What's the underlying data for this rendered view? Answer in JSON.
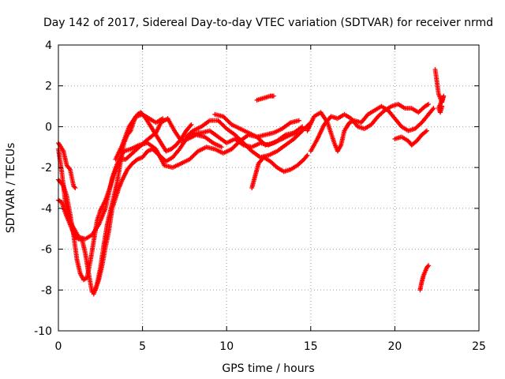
{
  "chart_data": {
    "type": "scatter",
    "title": "Day 142 of 2017, Sidereal Day-to-day VTEC variation (SDTVAR) for receiver nrmd",
    "xlabel": "GPS time / hours",
    "ylabel": "SDTVAR / TECUs",
    "xlim": [
      0,
      25
    ],
    "ylim": [
      -10,
      4
    ],
    "xticks": [
      0,
      5,
      10,
      15,
      20,
      25
    ],
    "yticks": [
      -10,
      -8,
      -6,
      -4,
      -2,
      0,
      2,
      4
    ],
    "grid": true,
    "legend": "none",
    "marker": "+",
    "series": [
      {
        "color": "#ff0000",
        "tracks": [
          [
            [
              0.0,
              -0.8
            ],
            [
              0.3,
              -1.2
            ],
            [
              0.5,
              -1.9
            ],
            [
              0.7,
              -2.1
            ],
            [
              0.9,
              -2.9
            ],
            [
              1.0,
              -3.0
            ]
          ],
          [
            [
              0.0,
              -1.1
            ],
            [
              0.2,
              -2.2
            ],
            [
              0.4,
              -3.6
            ],
            [
              0.6,
              -4.4
            ],
            [
              0.8,
              -4.8
            ],
            [
              1.2,
              -5.4
            ],
            [
              1.6,
              -5.5
            ],
            [
              2.0,
              -5.3
            ],
            [
              2.4,
              -4.8
            ],
            [
              2.8,
              -4.0
            ],
            [
              3.2,
              -2.5
            ],
            [
              3.5,
              -1.8
            ],
            [
              3.9,
              -1.2
            ],
            [
              4.3,
              -1.1
            ],
            [
              4.8,
              -0.9
            ],
            [
              5.3,
              -0.8
            ],
            [
              5.8,
              -1.1
            ],
            [
              6.3,
              -1.9
            ],
            [
              6.8,
              -2.0
            ],
            [
              7.3,
              -1.8
            ],
            [
              7.8,
              -1.6
            ],
            [
              8.3,
              -1.2
            ],
            [
              8.8,
              -1.0
            ],
            [
              9.3,
              -1.1
            ],
            [
              9.8,
              -1.3
            ],
            [
              10.3,
              -1.1
            ],
            [
              10.8,
              -0.7
            ],
            [
              11.3,
              -0.4
            ],
            [
              11.8,
              -0.5
            ],
            [
              12.3,
              -0.9
            ],
            [
              12.8,
              -0.8
            ],
            [
              13.3,
              -0.6
            ],
            [
              13.8,
              -0.4
            ],
            [
              14.3,
              -0.3
            ]
          ],
          [
            [
              0.0,
              -2.6
            ],
            [
              0.3,
              -2.9
            ],
            [
              0.5,
              -3.4
            ],
            [
              0.7,
              -4.3
            ],
            [
              0.9,
              -5.3
            ],
            [
              1.1,
              -6.5
            ],
            [
              1.3,
              -7.2
            ],
            [
              1.5,
              -7.5
            ],
            [
              1.7,
              -7.4
            ],
            [
              1.9,
              -6.6
            ],
            [
              2.1,
              -5.6
            ],
            [
              2.3,
              -4.6
            ],
            [
              2.5,
              -4.1
            ],
            [
              2.8,
              -3.6
            ],
            [
              3.1,
              -2.9
            ],
            [
              3.4,
              -2.1
            ],
            [
              3.7,
              -1.6
            ],
            [
              4.0,
              -1.6
            ],
            [
              4.4,
              -1.3
            ],
            [
              4.8,
              -1.0
            ],
            [
              5.2,
              -0.7
            ],
            [
              5.5,
              -0.5
            ],
            [
              5.8,
              -0.3
            ],
            [
              6.1,
              0.2
            ],
            [
              6.5,
              0.4
            ],
            [
              6.9,
              -0.2
            ],
            [
              7.3,
              -0.7
            ],
            [
              7.7,
              -0.6
            ],
            [
              8.2,
              -0.4
            ],
            [
              8.7,
              -0.5
            ],
            [
              9.2,
              -0.8
            ],
            [
              9.7,
              -1.0
            ]
          ],
          [
            [
              0.0,
              -3.6
            ],
            [
              0.2,
              -3.7
            ],
            [
              0.4,
              -4.2
            ],
            [
              0.6,
              -4.6
            ],
            [
              0.8,
              -5.0
            ],
            [
              1.0,
              -5.4
            ],
            [
              1.2,
              -5.5
            ],
            [
              1.4,
              -5.5
            ],
            [
              1.6,
              -6.2
            ],
            [
              1.8,
              -7.2
            ],
            [
              2.0,
              -8.1
            ],
            [
              2.2,
              -8.0
            ],
            [
              2.4,
              -7.5
            ],
            [
              2.6,
              -6.8
            ],
            [
              2.8,
              -5.9
            ],
            [
              3.0,
              -5.1
            ],
            [
              3.2,
              -4.0
            ],
            [
              3.4,
              -3.5
            ],
            [
              3.6,
              -3.0
            ],
            [
              3.8,
              -2.6
            ],
            [
              4.1,
              -2.1
            ],
            [
              4.4,
              -1.8
            ],
            [
              4.7,
              -1.6
            ],
            [
              5.0,
              -1.5
            ],
            [
              5.3,
              -1.2
            ],
            [
              5.6,
              -1.1
            ],
            [
              6.0,
              -1.4
            ],
            [
              6.4,
              -1.7
            ],
            [
              6.8,
              -1.5
            ],
            [
              7.2,
              -1.1
            ],
            [
              7.6,
              -0.6
            ],
            [
              8.0,
              -0.3
            ],
            [
              8.5,
              -0.3
            ],
            [
              9.0,
              -0.2
            ],
            [
              9.5,
              -0.5
            ],
            [
              10.0,
              -0.8
            ],
            [
              10.5,
              -0.6
            ],
            [
              11.0,
              -0.9
            ],
            [
              11.5,
              -1.0
            ],
            [
              12.0,
              -0.8
            ],
            [
              12.5,
              -0.9
            ],
            [
              13.0,
              -0.7
            ],
            [
              13.5,
              -0.4
            ],
            [
              14.0,
              -0.3
            ],
            [
              14.5,
              0.0
            ]
          ],
          [
            [
              2.1,
              -8.2
            ],
            [
              2.3,
              -7.7
            ],
            [
              2.5,
              -6.9
            ],
            [
              2.7,
              -5.8
            ],
            [
              2.9,
              -4.8
            ],
            [
              3.1,
              -4.1
            ],
            [
              3.3,
              -3.4
            ],
            [
              3.5,
              -2.7
            ],
            [
              3.7,
              -1.7
            ],
            [
              3.9,
              -0.8
            ],
            [
              4.1,
              -0.4
            ],
            [
              4.3,
              -0.2
            ],
            [
              4.5,
              0.3
            ],
            [
              4.7,
              0.6
            ],
            [
              4.9,
              0.7
            ],
            [
              5.2,
              0.4
            ],
            [
              5.5,
              0.0
            ],
            [
              5.8,
              -0.4
            ],
            [
              6.1,
              -0.8
            ],
            [
              6.4,
              -1.2
            ],
            [
              6.7,
              -1.1
            ],
            [
              7.0,
              -0.9
            ],
            [
              7.3,
              -0.6
            ],
            [
              7.6,
              -0.2
            ],
            [
              7.9,
              0.1
            ]
          ],
          [
            [
              3.4,
              -1.6
            ],
            [
              3.8,
              -0.9
            ],
            [
              4.2,
              0.0
            ],
            [
              4.6,
              0.5
            ],
            [
              5.0,
              0.6
            ],
            [
              5.4,
              0.4
            ],
            [
              5.8,
              0.2
            ],
            [
              6.2,
              0.4
            ]
          ],
          [
            [
              7.6,
              -0.5
            ],
            [
              8.0,
              -0.2
            ],
            [
              8.5,
              0.0
            ],
            [
              9.0,
              0.3
            ],
            [
              9.5,
              0.3
            ],
            [
              10.0,
              -0.1
            ],
            [
              10.5,
              -0.4
            ],
            [
              11.0,
              -0.8
            ],
            [
              11.5,
              -1.2
            ],
            [
              12.0,
              -1.5
            ],
            [
              12.5,
              -1.4
            ],
            [
              13.0,
              -1.2
            ],
            [
              13.5,
              -0.9
            ],
            [
              14.0,
              -0.6
            ],
            [
              14.5,
              -0.2
            ],
            [
              15.0,
              0.2
            ]
          ],
          [
            [
              9.3,
              0.6
            ],
            [
              9.8,
              0.5
            ],
            [
              10.3,
              0.1
            ],
            [
              10.8,
              -0.1
            ],
            [
              11.3,
              -0.3
            ],
            [
              11.8,
              -0.5
            ],
            [
              12.3,
              -0.4
            ],
            [
              12.8,
              -0.3
            ],
            [
              13.3,
              -0.1
            ],
            [
              13.8,
              0.2
            ],
            [
              14.3,
              0.3
            ]
          ],
          [
            [
              11.5,
              -3.0
            ],
            [
              11.7,
              -2.4
            ],
            [
              11.9,
              -1.8
            ],
            [
              12.2,
              -1.5
            ],
            [
              12.6,
              -1.7
            ],
            [
              13.0,
              -2.0
            ],
            [
              13.4,
              -2.2
            ],
            [
              13.8,
              -2.1
            ],
            [
              14.2,
              -1.9
            ],
            [
              14.6,
              -1.6
            ],
            [
              14.8,
              -1.4
            ]
          ],
          [
            [
              11.8,
              1.3
            ],
            [
              12.2,
              1.4
            ],
            [
              12.6,
              1.5
            ],
            [
              12.8,
              1.5
            ]
          ],
          [
            [
              14.8,
              -0.2
            ],
            [
              15.2,
              0.5
            ],
            [
              15.6,
              0.7
            ],
            [
              16.0,
              0.2
            ],
            [
              16.4,
              -0.8
            ],
            [
              16.6,
              -1.2
            ],
            [
              16.8,
              -0.9
            ],
            [
              17.0,
              -0.2
            ],
            [
              17.3,
              0.2
            ],
            [
              17.6,
              0.3
            ],
            [
              18.0,
              0.2
            ],
            [
              18.4,
              0.6
            ],
            [
              18.8,
              0.8
            ],
            [
              19.2,
              1.0
            ],
            [
              19.6,
              0.8
            ],
            [
              20.0,
              0.4
            ],
            [
              20.4,
              0.0
            ],
            [
              20.8,
              -0.2
            ],
            [
              21.2,
              -0.1
            ],
            [
              21.6,
              0.2
            ],
            [
              22.0,
              0.6
            ],
            [
              22.3,
              0.9
            ]
          ],
          [
            [
              15.0,
              -1.2
            ],
            [
              15.4,
              -0.6
            ],
            [
              15.8,
              0.1
            ],
            [
              16.2,
              0.5
            ],
            [
              16.6,
              0.4
            ],
            [
              17.0,
              0.6
            ],
            [
              17.4,
              0.4
            ],
            [
              17.8,
              0.0
            ],
            [
              18.2,
              -0.1
            ],
            [
              18.6,
              0.1
            ],
            [
              19.0,
              0.5
            ],
            [
              19.4,
              0.8
            ],
            [
              19.8,
              1.0
            ],
            [
              20.2,
              1.1
            ],
            [
              20.6,
              0.9
            ],
            [
              21.0,
              0.9
            ],
            [
              21.4,
              0.7
            ],
            [
              21.8,
              1.0
            ],
            [
              22.0,
              1.1
            ]
          ],
          [
            [
              20.0,
              -0.6
            ],
            [
              20.4,
              -0.5
            ],
            [
              20.8,
              -0.7
            ],
            [
              21.0,
              -0.9
            ],
            [
              21.3,
              -0.7
            ],
            [
              21.6,
              -0.4
            ],
            [
              21.9,
              -0.2
            ]
          ],
          [
            [
              21.5,
              -8.0
            ],
            [
              21.6,
              -7.6
            ],
            [
              21.7,
              -7.3
            ],
            [
              21.8,
              -7.1
            ],
            [
              21.9,
              -6.9
            ],
            [
              22.0,
              -6.8
            ]
          ],
          [
            [
              22.4,
              2.8
            ],
            [
              22.5,
              2.2
            ],
            [
              22.6,
              1.6
            ],
            [
              22.7,
              1.4
            ],
            [
              22.8,
              1.2
            ],
            [
              22.9,
              1.5
            ],
            [
              22.6,
              0.9
            ],
            [
              22.7,
              0.7
            ],
            [
              22.8,
              1.0
            ]
          ]
        ]
      }
    ]
  }
}
